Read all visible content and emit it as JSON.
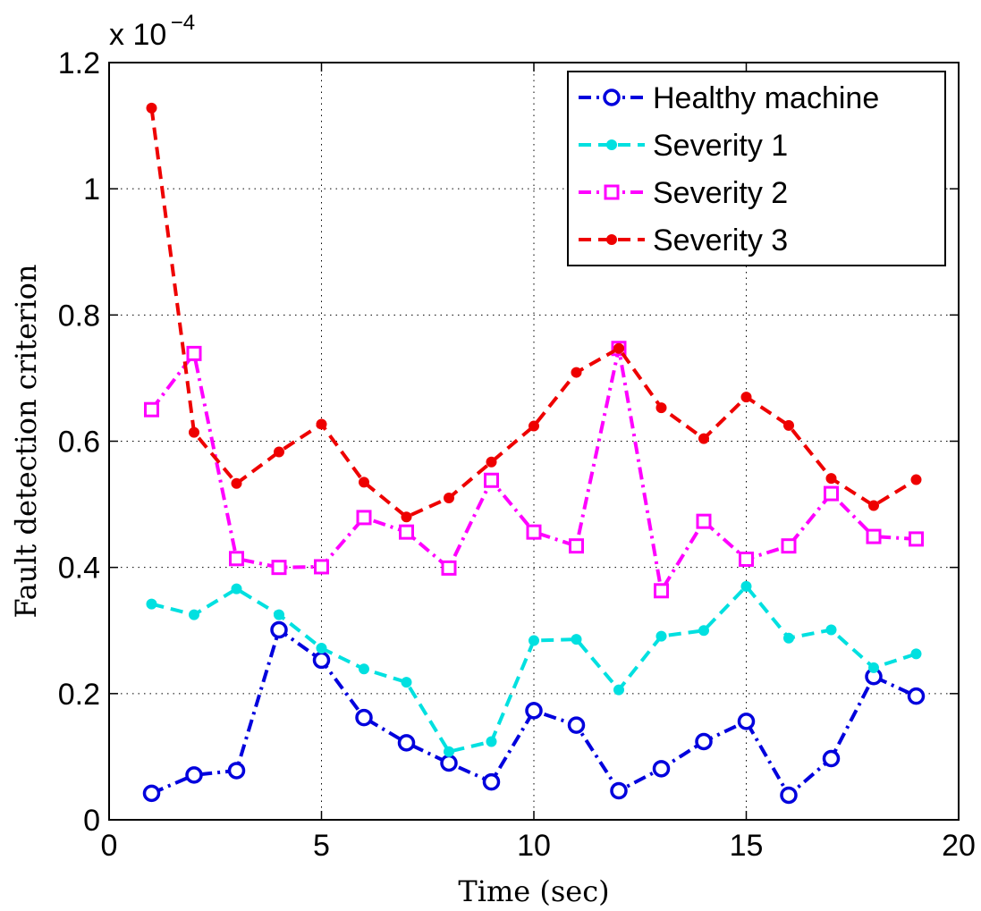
{
  "chart_data": {
    "type": "line",
    "xlabel": "Time (sec)",
    "ylabel": "Fault detection criterion",
    "xlim": [
      0,
      20
    ],
    "ylim": [
      0,
      1.2
    ],
    "x_ticks": [
      "0",
      "5",
      "10",
      "15",
      "20"
    ],
    "y_ticks": [
      "0",
      "0.2",
      "0.4",
      "0.6",
      "0.8",
      "1",
      "1.2"
    ],
    "y_multiplier": {
      "base": "x 10",
      "exponent": "−4"
    },
    "grid": true,
    "legend_position": "top-right",
    "x": [
      1,
      2,
      3,
      4,
      5,
      6,
      7,
      8,
      9,
      10,
      11,
      12,
      13,
      14,
      15,
      16,
      17,
      18,
      19
    ],
    "series": [
      {
        "name": "Healthy machine",
        "color": "#0000dd",
        "line_style": "dash-dot",
        "marker": "circle",
        "values": [
          0.042,
          0.071,
          0.078,
          0.301,
          0.253,
          0.162,
          0.122,
          0.09,
          0.06,
          0.173,
          0.15,
          0.046,
          0.081,
          0.124,
          0.156,
          0.039,
          0.097,
          0.227,
          0.196
        ]
      },
      {
        "name": "Severity 1",
        "color": "#00e0e0",
        "line_style": "dashed",
        "marker": "dot",
        "values": [
          0.342,
          0.325,
          0.366,
          0.325,
          0.272,
          0.239,
          0.218,
          0.108,
          0.124,
          0.284,
          0.286,
          0.206,
          0.291,
          0.3,
          0.37,
          0.288,
          0.301,
          0.241,
          0.263
        ]
      },
      {
        "name": "Severity 2",
        "color": "#ff00ff",
        "line_style": "dash-dot",
        "marker": "square",
        "values": [
          0.65,
          0.739,
          0.414,
          0.4,
          0.401,
          0.479,
          0.456,
          0.399,
          0.538,
          0.456,
          0.434,
          0.747,
          0.363,
          0.473,
          0.413,
          0.434,
          0.517,
          0.449,
          0.445
        ]
      },
      {
        "name": "Severity 3",
        "color": "#ee0000",
        "line_style": "dashed",
        "marker": "dot",
        "values": [
          1.128,
          0.614,
          0.533,
          0.583,
          0.627,
          0.535,
          0.48,
          0.51,
          0.567,
          0.624,
          0.709,
          0.747,
          0.653,
          0.604,
          0.67,
          0.625,
          0.541,
          0.498,
          0.539
        ]
      }
    ]
  }
}
